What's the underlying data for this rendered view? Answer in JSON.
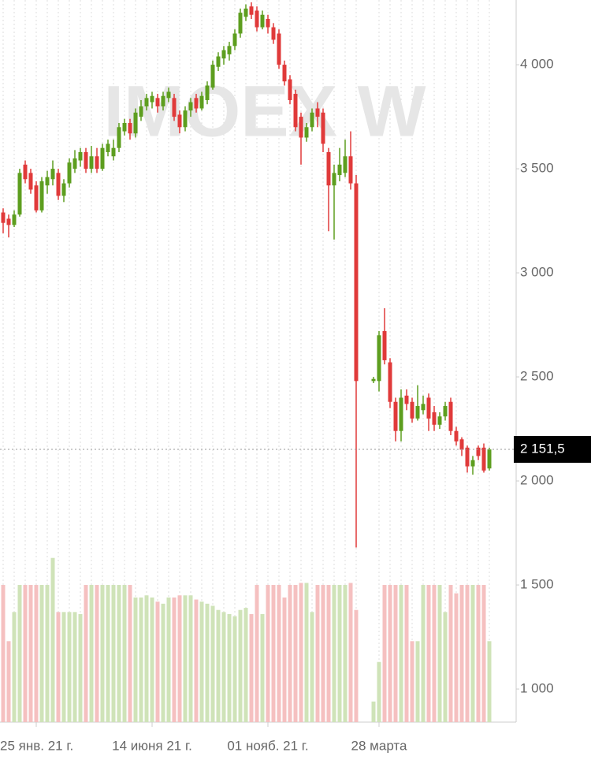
{
  "chart_data": {
    "type": "candlestick",
    "watermark": "IMOEX W",
    "categories": [
      null,
      null,
      null,
      null,
      null,
      null,
      "25 янв. 21 г.",
      null,
      null,
      null,
      null,
      null,
      null,
      null,
      null,
      null,
      null,
      null,
      null,
      null,
      null,
      null,
      null,
      null,
      null,
      null,
      null,
      "14 июня 21 г.",
      null,
      null,
      null,
      null,
      null,
      null,
      null,
      null,
      null,
      null,
      null,
      null,
      null,
      null,
      null,
      null,
      null,
      null,
      null,
      null,
      "01 нояб. 21 г.",
      null,
      null,
      null,
      null,
      null,
      null,
      null,
      null,
      null,
      null,
      null,
      null,
      null,
      null,
      null,
      null,
      null,
      "28 марта",
      null,
      null,
      null,
      null,
      null,
      null,
      null,
      null,
      null,
      null,
      null,
      null,
      null,
      null,
      null,
      null,
      null,
      null,
      null,
      null
    ],
    "gap_after": 64,
    "series": [
      {
        "name": "open",
        "values": [
          3290,
          3260,
          3230,
          3280,
          3520,
          3480,
          3420,
          3300,
          3420,
          3450,
          3480,
          3370,
          3430,
          3500,
          3540,
          3580,
          3500,
          3560,
          3500,
          3580,
          3560,
          3600,
          3680,
          3720,
          3670,
          3750,
          3800,
          3820,
          3840,
          3800,
          3840,
          3840,
          3760,
          3700,
          3780,
          3840,
          3790,
          3830,
          3890,
          3990,
          4030,
          4050,
          4090,
          4150,
          4230,
          4280,
          4260,
          4180,
          4220,
          4180,
          4150,
          4000,
          3930,
          3860,
          3750,
          3650,
          3700,
          3790,
          3770,
          3580,
          3420,
          3470,
          3480,
          3560,
          3430,
          2480,
          2480,
          2720,
          2570,
          2380,
          2240,
          2410,
          2380,
          2300,
          2340,
          2400,
          2330,
          2270,
          2310,
          2380,
          2240,
          2200,
          2160,
          2070,
          2160,
          2160,
          2060
        ]
      },
      {
        "name": "high",
        "values": [
          3310,
          3280,
          3300,
          3500,
          3540,
          3500,
          3440,
          3460,
          3490,
          3540,
          3500,
          3450,
          3550,
          3590,
          3600,
          3600,
          3610,
          3600,
          3620,
          3640,
          3640,
          3720,
          3740,
          3740,
          3790,
          3830,
          3860,
          3870,
          3860,
          3870,
          3890,
          3860,
          3780,
          3800,
          3840,
          3860,
          3870,
          3920,
          4020,
          4060,
          4090,
          4110,
          4170,
          4270,
          4290,
          4300,
          4280,
          4260,
          4240,
          4200,
          4170,
          4020,
          3950,
          3880,
          3770,
          3720,
          3790,
          3820,
          3790,
          3600,
          3520,
          3600,
          3640,
          3680,
          3470,
          2500,
          2720,
          2830,
          2590,
          2400,
          2440,
          2440,
          2400,
          2460,
          2410,
          2420,
          2360,
          2330,
          2380,
          2400,
          2260,
          2210,
          2170,
          2120,
          2170,
          2180,
          2160
        ]
      },
      {
        "name": "low",
        "values": [
          3190,
          3170,
          3220,
          3270,
          3430,
          3380,
          3290,
          3290,
          3380,
          3420,
          3350,
          3340,
          3410,
          3480,
          3510,
          3480,
          3480,
          3480,
          3490,
          3560,
          3540,
          3580,
          3660,
          3640,
          3650,
          3730,
          3780,
          3790,
          3770,
          3780,
          3820,
          3730,
          3670,
          3680,
          3750,
          3770,
          3780,
          3810,
          3880,
          3970,
          4000,
          4020,
          4070,
          4130,
          4210,
          4220,
          4160,
          4170,
          4150,
          4100,
          3980,
          3900,
          3810,
          3680,
          3520,
          3630,
          3680,
          3700,
          3580,
          3200,
          3160,
          3440,
          3460,
          3400,
          1680,
          2470,
          2430,
          2560,
          2350,
          2190,
          2190,
          2340,
          2280,
          2290,
          2320,
          2240,
          2240,
          2250,
          2290,
          2220,
          2170,
          2120,
          2040,
          2030,
          2100,
          2040,
          2050
        ]
      },
      {
        "name": "close",
        "values": [
          3240,
          3230,
          3280,
          3480,
          3450,
          3400,
          3300,
          3440,
          3460,
          3500,
          3370,
          3430,
          3530,
          3550,
          3580,
          3500,
          3560,
          3500,
          3600,
          3620,
          3600,
          3700,
          3720,
          3670,
          3770,
          3800,
          3840,
          3850,
          3800,
          3850,
          3870,
          3750,
          3700,
          3780,
          3820,
          3790,
          3850,
          3900,
          4000,
          4040,
          4070,
          4090,
          4150,
          4250,
          4270,
          4240,
          4180,
          4240,
          4180,
          4120,
          4000,
          3920,
          3830,
          3700,
          3650,
          3700,
          3770,
          3750,
          3620,
          3420,
          3480,
          3520,
          3560,
          3430,
          2480,
          2490,
          2700,
          2580,
          2380,
          2240,
          2400,
          2370,
          2300,
          2360,
          2370,
          2300,
          2270,
          2310,
          2360,
          2240,
          2190,
          2150,
          2070,
          2100,
          2120,
          2050,
          2151.5
        ]
      },
      {
        "name": "volume",
        "values": [
          1500,
          1230,
          1370,
          1500,
          1500,
          1500,
          1500,
          1500,
          1500,
          1630,
          1370,
          1370,
          1370,
          1370,
          1360,
          1500,
          1500,
          1500,
          1500,
          1500,
          1500,
          1500,
          1500,
          1500,
          1440,
          1440,
          1450,
          1440,
          1420,
          1410,
          1440,
          1440,
          1450,
          1450,
          1450,
          1430,
          1420,
          1410,
          1400,
          1380,
          1370,
          1360,
          1350,
          1380,
          1390,
          1360,
          1500,
          1360,
          1500,
          1500,
          1500,
          1440,
          1500,
          1500,
          1510,
          1510,
          1370,
          1500,
          1500,
          1500,
          1500,
          1500,
          1500,
          1510,
          1380,
          940,
          1130,
          1500,
          1500,
          1500,
          1500,
          1500,
          1230,
          1230,
          1500,
          1500,
          1500,
          1500,
          1370,
          1500,
          1460,
          1500,
          1500,
          1500,
          1500,
          1500,
          1230
        ]
      }
    ],
    "up_color": "#5d9e1f",
    "down_color": "#e03a3a",
    "up_volume_color": "#cfe3b8",
    "down_volume_color": "#f5c0c0",
    "last_price": {
      "value": 2151.5,
      "label": "2 151,5"
    },
    "ylim": [
      841,
      4311
    ],
    "yticks": [
      {
        "value": 1000,
        "label": "1 000"
      },
      {
        "value": 1500,
        "label": "1 500"
      },
      {
        "value": 2000,
        "label": "2 000"
      },
      {
        "value": 2500,
        "label": "2 500"
      },
      {
        "value": 3000,
        "label": "3 000"
      },
      {
        "value": 3500,
        "label": "3 500"
      },
      {
        "value": 4000,
        "label": "4 000"
      }
    ]
  }
}
